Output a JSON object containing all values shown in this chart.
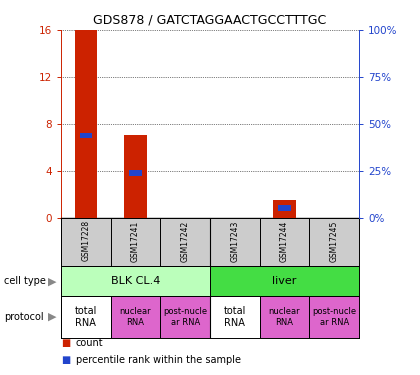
{
  "title": "GDS878 / GATCTAGGAACTGCCTTTGC",
  "samples": [
    "GSM17228",
    "GSM17241",
    "GSM17242",
    "GSM17243",
    "GSM17244",
    "GSM17245"
  ],
  "counts": [
    16,
    7,
    0,
    0,
    1.5,
    0
  ],
  "percentiles": [
    43.75,
    23.75,
    0,
    0,
    5.0,
    0
  ],
  "ylim_left": [
    0,
    16
  ],
  "ylim_right": [
    0,
    100
  ],
  "yticks_left": [
    0,
    4,
    8,
    12,
    16
  ],
  "yticks_right": [
    0,
    25,
    50,
    75,
    100
  ],
  "ytick_labels_left": [
    "0",
    "4",
    "8",
    "12",
    "16"
  ],
  "ytick_labels_right": [
    "0%",
    "25%",
    "50%",
    "75%",
    "100%"
  ],
  "cell_type_labels": [
    "BLK CL.4",
    "liver"
  ],
  "cell_type_spans": [
    3,
    3
  ],
  "cell_type_colors": [
    "#bbffbb",
    "#44dd44"
  ],
  "protocol_color": "#dd66cc",
  "bar_color": "#cc2200",
  "dot_color": "#2244cc",
  "grid_color": "#000000",
  "bg_color": "#ffffff",
  "left_tick_color": "#cc2200",
  "right_tick_color": "#2244cc",
  "sample_bg_color": "#cccccc"
}
